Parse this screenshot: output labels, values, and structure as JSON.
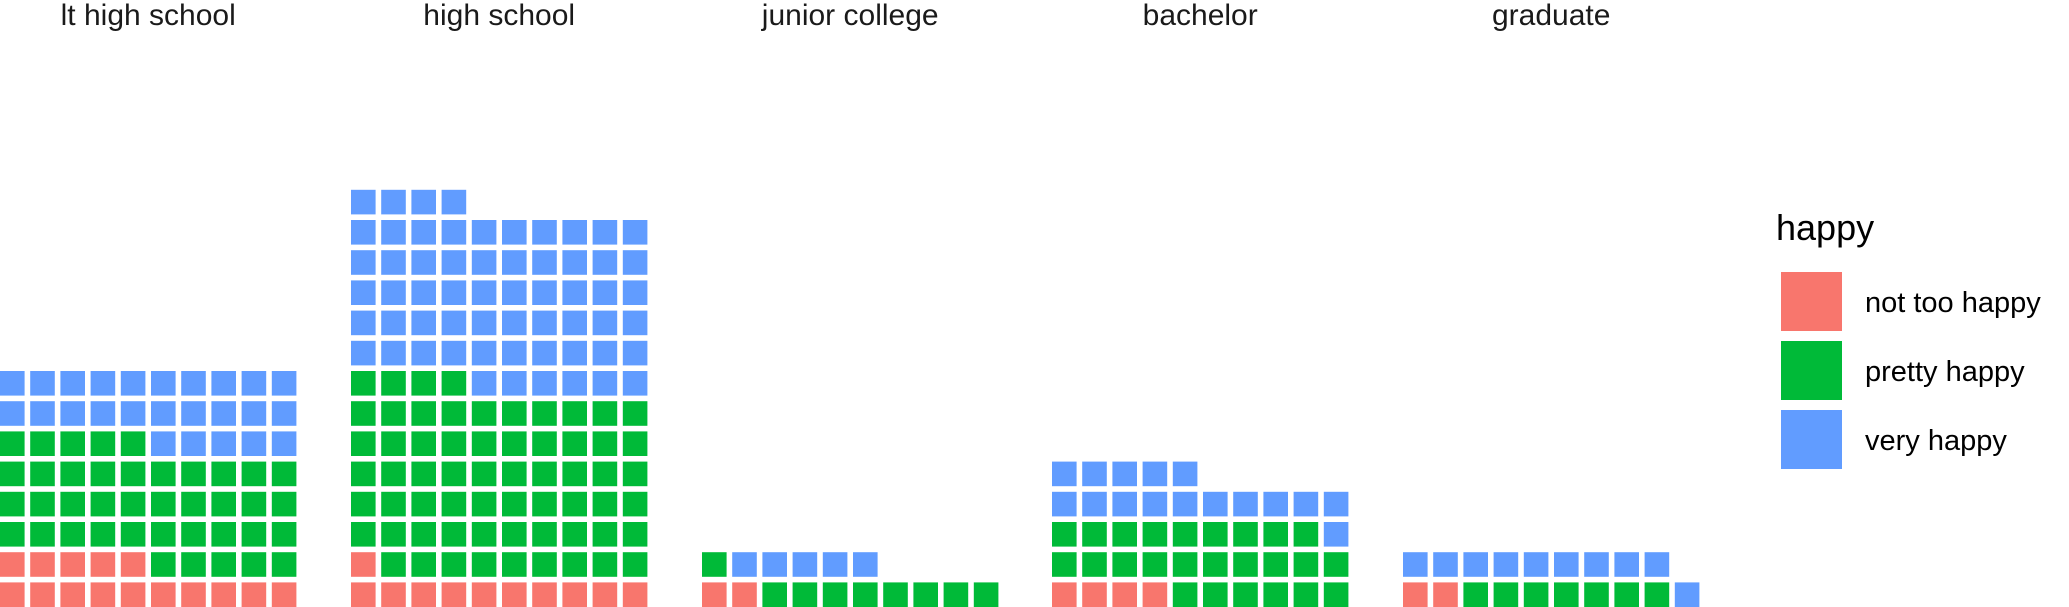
{
  "chart_data": {
    "type": "waffle",
    "facets": [
      "lt high school",
      "high school",
      "junior college",
      "bachelor",
      "graduate"
    ],
    "series": [
      {
        "name": "not too happy",
        "color": "#F8766D",
        "values": [
          15,
          11,
          2,
          4,
          2
        ]
      },
      {
        "name": "pretty happy",
        "color": "#00BA38",
        "values": [
          40,
          63,
          9,
          25,
          7
        ]
      },
      {
        "name": "very happy",
        "color": "#619CFF",
        "values": [
          25,
          60,
          5,
          16,
          10
        ]
      }
    ],
    "columns_per_facet": 10,
    "legend": {
      "title": "happy",
      "position": "right",
      "items": [
        "not too happy",
        "pretty happy",
        "very happy"
      ]
    },
    "grid": false
  }
}
